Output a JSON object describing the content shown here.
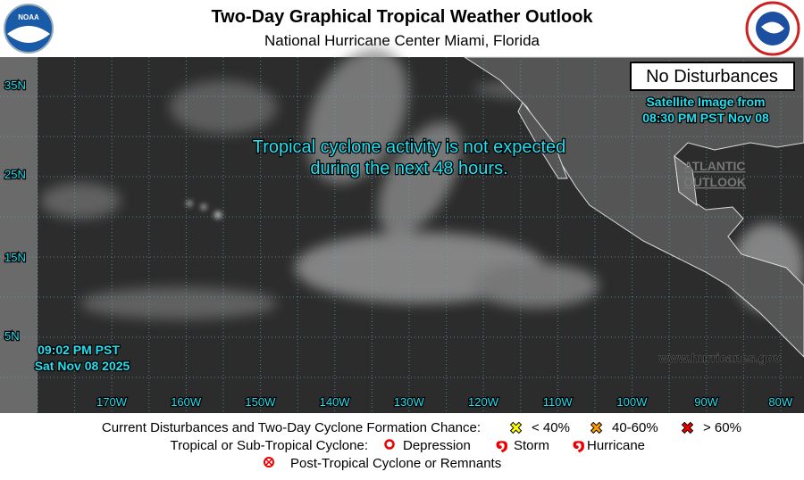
{
  "header": {
    "title": "Two-Day Graphical Tropical Weather Outlook",
    "subtitle": "National Hurricane Center  Miami, Florida",
    "noaa_logo": "NOAA"
  },
  "map": {
    "status": "No Disturbances",
    "satellite": [
      "Satellite Image from",
      "08:30 PM PST Nov 08"
    ],
    "message": [
      "Tropical cyclone activity is not expected",
      "during the next 48 hours."
    ],
    "atlantic": [
      "ATLANTIC",
      "OUTLOOK"
    ],
    "timestamp": [
      "09:02 PM PST",
      "Sat Nov 08 2025"
    ],
    "website": "www.hurricanes.gov",
    "lat_labels": [
      "35N",
      "25N",
      "15N",
      "5N"
    ],
    "lon_labels": [
      "170W",
      "160W",
      "150W",
      "140W",
      "130W",
      "120W",
      "110W",
      "100W",
      "90W",
      "80W"
    ]
  },
  "legend": {
    "formation_label": "Current Disturbances and Two-Day Cyclone Formation Chance:",
    "formation": [
      "< 40%",
      "40-60%",
      "> 60%"
    ],
    "cyclone_label": "Tropical or Sub-Tropical Cyclone:",
    "cyclone": [
      "Depression",
      "Storm",
      "Hurricane"
    ],
    "post_tropical": "Post-Tropical Cyclone or Remnants"
  }
}
